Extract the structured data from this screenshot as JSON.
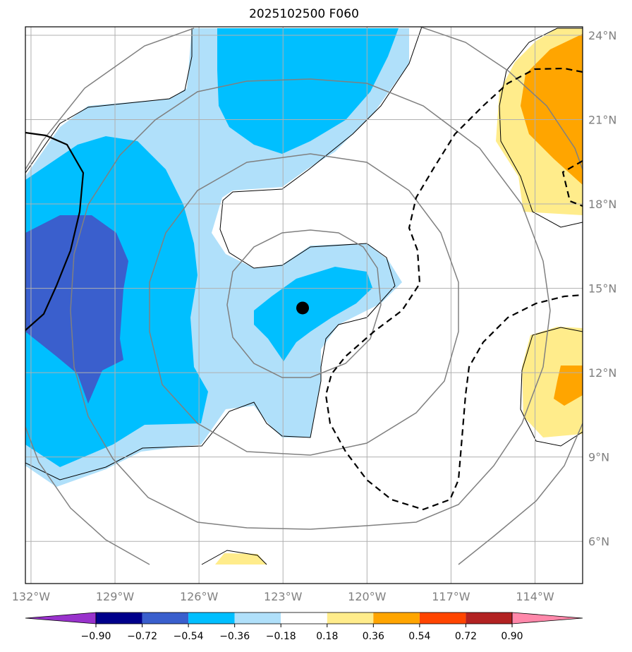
{
  "chart_data": {
    "type": "heatmap",
    "title": "2025102500 F060",
    "xlabel": "",
    "ylabel": "",
    "x_range": [
      -132.2,
      -112.3
    ],
    "y_range": [
      4.5,
      24.3
    ],
    "lon_ticks": [
      {
        "value": -132,
        "label": "132°W"
      },
      {
        "value": -129,
        "label": "129°W"
      },
      {
        "value": -126,
        "label": "126°W"
      },
      {
        "value": -123,
        "label": "123°W"
      },
      {
        "value": -120,
        "label": "120°W"
      },
      {
        "value": -117,
        "label": "117°W"
      },
      {
        "value": -114,
        "label": "114°W"
      }
    ],
    "lat_ticks": [
      {
        "value": 24,
        "label": "24°N"
      },
      {
        "value": 21,
        "label": "21°N"
      },
      {
        "value": 18,
        "label": "18°N"
      },
      {
        "value": 15,
        "label": "15°N"
      },
      {
        "value": 12,
        "label": "12°N"
      },
      {
        "value": 9,
        "label": "9°N"
      },
      {
        "value": 6,
        "label": "6°N"
      }
    ],
    "storm_center": {
      "lon": -122.3,
      "lat": 14.3
    },
    "range_rings_deg": [
      3,
      5,
      8
    ],
    "colorbar": {
      "levels": [
        "−0.90",
        "−0.72",
        "−0.54",
        "−0.36",
        "−0.18",
        "0.18",
        "0.36",
        "0.54",
        "0.72",
        "0.90"
      ],
      "colors": [
        "#9932cc",
        "#00008b",
        "#3a5fcd",
        "#00bfff",
        "#b0e0fa",
        "#ffffff",
        "#ffec8b",
        "#ffa500",
        "#ff4500",
        "#b22222",
        "#ff88aa"
      ],
      "extend": "both"
    },
    "regions": {
      "neg_018": "#b0e0fa",
      "neg_036": "#00bfff",
      "neg_054": "#3a5fcd",
      "pos_018": "#ffec8b",
      "pos_036": "#ffa500"
    }
  }
}
